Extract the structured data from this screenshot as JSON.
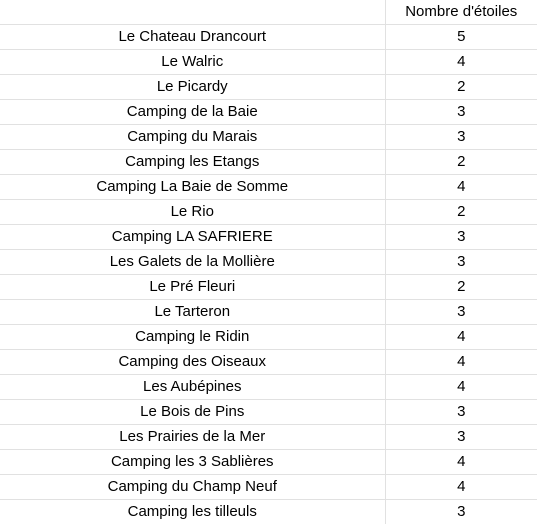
{
  "header": {
    "name": "",
    "stars": "Nombre d'étoiles"
  },
  "rows": [
    {
      "name": "Le Chateau Drancourt",
      "stars": "5"
    },
    {
      "name": "Le Walric",
      "stars": "4"
    },
    {
      "name": "Le Picardy",
      "stars": "2"
    },
    {
      "name": "Camping de la Baie",
      "stars": "3"
    },
    {
      "name": "Camping du Marais",
      "stars": "3"
    },
    {
      "name": "Camping les Etangs",
      "stars": "2"
    },
    {
      "name": "Camping La Baie de Somme",
      "stars": "4"
    },
    {
      "name": "Le Rio",
      "stars": "2"
    },
    {
      "name": "Camping LA SAFRIERE",
      "stars": "3"
    },
    {
      "name": "Les Galets de la Mollière",
      "stars": "3"
    },
    {
      "name": "Le Pré Fleuri",
      "stars": "2"
    },
    {
      "name": "Le Tarteron",
      "stars": "3"
    },
    {
      "name": "Camping le Ridin",
      "stars": "4"
    },
    {
      "name": "Camping des Oiseaux",
      "stars": "4"
    },
    {
      "name": "Les Aubépines",
      "stars": "4"
    },
    {
      "name": "Le Bois de Pins",
      "stars": "3"
    },
    {
      "name": "Les Prairies de la Mer",
      "stars": "3"
    },
    {
      "name": "Camping les 3 Sablières",
      "stars": "4"
    },
    {
      "name": "Camping du Champ Neuf",
      "stars": "4"
    },
    {
      "name": "Camping les tilleuls",
      "stars": "3"
    }
  ],
  "colors": {
    "gridline": "#e1e1e1",
    "text": "#000000",
    "background": "#ffffff"
  }
}
